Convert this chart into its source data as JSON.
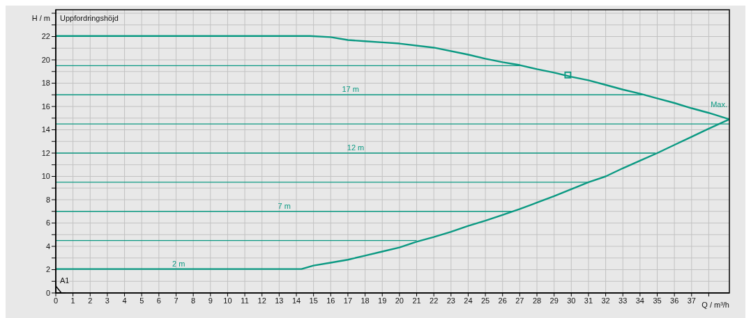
{
  "chart_data": {
    "type": "line",
    "title": "Uppfordringshöjd",
    "xlabel": "Q / m³/h",
    "ylabel": "H / m",
    "annotations": [
      "A1"
    ],
    "xlim": [
      0,
      39.2
    ],
    "ylim": [
      0,
      24.3
    ],
    "xticks": [
      0,
      1,
      2,
      3,
      4,
      5,
      6,
      7,
      8,
      9,
      10,
      11,
      12,
      13,
      14,
      15,
      16,
      17,
      18,
      19,
      20,
      21,
      22,
      23,
      24,
      25,
      26,
      27,
      28,
      29,
      30,
      31,
      32,
      33,
      34,
      35,
      36,
      37,
      {
        "value": 38,
        "label": null
      }
    ],
    "yticks": [
      0,
      {
        "value": 1,
        "label": null
      },
      2,
      {
        "value": 3,
        "label": null
      },
      4,
      {
        "value": 5,
        "label": null
      },
      6,
      {
        "value": 7,
        "label": null
      },
      8,
      {
        "value": 9,
        "label": null
      },
      10,
      {
        "value": 11,
        "label": null
      },
      12,
      {
        "value": 13,
        "label": null
      },
      14,
      {
        "value": 15,
        "label": null
      },
      16,
      {
        "value": 17,
        "label": null
      },
      18,
      {
        "value": 19,
        "label": null
      },
      20,
      {
        "value": 21,
        "label": null
      },
      22,
      {
        "value": 23,
        "label": null
      },
      {
        "value": 24,
        "label": null
      }
    ],
    "grid": true,
    "legend": false,
    "marker": "none",
    "line_style": "solid",
    "series": [
      {
        "name": "Max.",
        "color": "#0a9982",
        "x": [
          0,
          14.8,
          16,
          17,
          18,
          19,
          20,
          22,
          24,
          25,
          26,
          27,
          28,
          29,
          30,
          31,
          32,
          33,
          34,
          35,
          36,
          37,
          38,
          39.2
        ],
        "values": [
          22.05,
          22.05,
          21.95,
          21.7,
          21.6,
          21.5,
          21.4,
          21.05,
          20.45,
          20.1,
          19.8,
          19.55,
          19.2,
          18.9,
          18.55,
          18.25,
          17.85,
          17.45,
          17.1,
          16.7,
          16.3,
          15.85,
          15.45,
          14.9
        ]
      },
      {
        "name": "2 m",
        "color": "#0a9982",
        "x": [
          0,
          14.3,
          15,
          16,
          17,
          18,
          19,
          20,
          21,
          22,
          23,
          24,
          25,
          26,
          27,
          28,
          29,
          30,
          31,
          32,
          33,
          34,
          35,
          36,
          37,
          38,
          39.2
        ],
        "values": [
          2.05,
          2.05,
          2.35,
          2.6,
          2.85,
          3.2,
          3.55,
          3.9,
          4.4,
          4.8,
          5.25,
          5.75,
          6.2,
          6.7,
          7.2,
          7.75,
          8.3,
          8.9,
          9.5,
          10.0,
          10.7,
          11.35,
          12.0,
          12.7,
          13.4,
          14.1,
          14.9
        ]
      },
      {
        "color": "#0a9982",
        "x": [
          0,
          27
        ],
        "values": [
          19.5,
          19.5
        ]
      },
      {
        "name": "17 m",
        "color": "#0a9982",
        "x": [
          0,
          34.3
        ],
        "values": [
          17,
          17
        ]
      },
      {
        "color": "#0a9982",
        "x": [
          0,
          39.2
        ],
        "values": [
          14.5,
          14.5
        ]
      },
      {
        "name": "12 m",
        "color": "#0a9982",
        "x": [
          0,
          34.9
        ],
        "values": [
          12,
          12
        ]
      },
      {
        "color": "#0a9982",
        "x": [
          0,
          31
        ],
        "values": [
          9.5,
          9.5
        ]
      },
      {
        "name": "7 m",
        "color": "#0a9982",
        "x": [
          0,
          26.6
        ],
        "values": [
          7,
          7
        ]
      },
      {
        "color": "#0a9982",
        "x": [
          0,
          21
        ],
        "values": [
          4.5,
          4.5
        ]
      },
      {
        "type": "scatter",
        "marker": "square",
        "color": "#0a9982",
        "x": [
          29.8
        ],
        "values": [
          18.7
        ]
      }
    ]
  }
}
